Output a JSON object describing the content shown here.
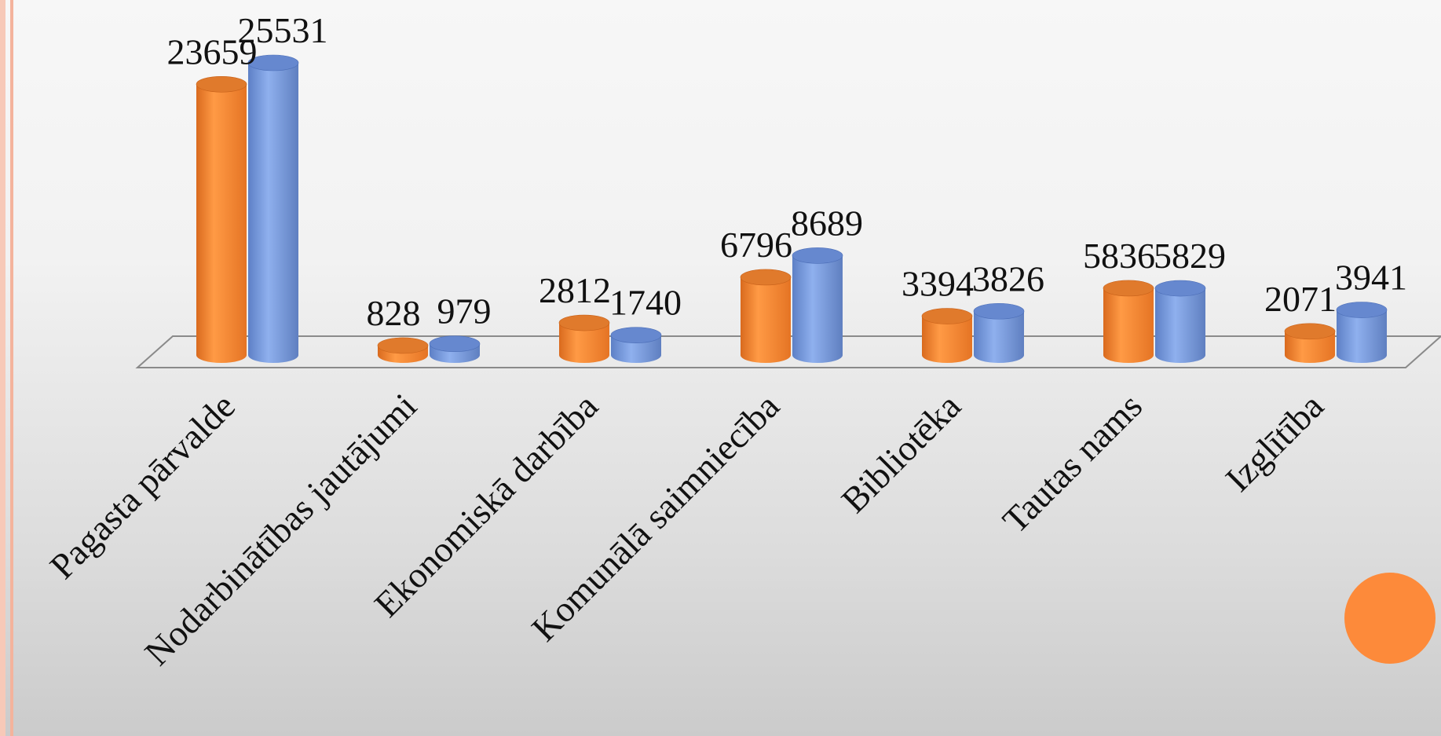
{
  "colors": {
    "series1": "#f58a33",
    "series1_dark": "#c9621a",
    "series1_top": "#e07a2c",
    "series2": "#7b9de0",
    "series2_dark": "#4d6fb8",
    "series2_top": "#6688cf",
    "accent": "#fd8a3a"
  },
  "chart_data": {
    "type": "bar",
    "style": "3d-cylinder",
    "categories": [
      "Pagasta pārvalde",
      "Nodarbinātības jautājumi",
      "Ekonomiskā darbība",
      "Komunālā saimniecība",
      "Bibliotēka",
      "Tautas nams",
      "Izglītība"
    ],
    "series": [
      {
        "values": [
          23659,
          828,
          2812,
          6796,
          3394,
          5836,
          2071
        ]
      },
      {
        "values": [
          25531,
          979,
          1740,
          8689,
          3826,
          5829,
          3941
        ]
      }
    ],
    "value_labels": [
      [
        "23659",
        "828",
        "2812",
        "6796",
        "3394",
        "5836",
        "2071"
      ],
      [
        "25531",
        "979",
        "1740",
        "8689",
        "3826",
        "5829",
        "3941"
      ]
    ],
    "ylim": [
      0,
      25531
    ],
    "grid": false,
    "legend": "none"
  }
}
